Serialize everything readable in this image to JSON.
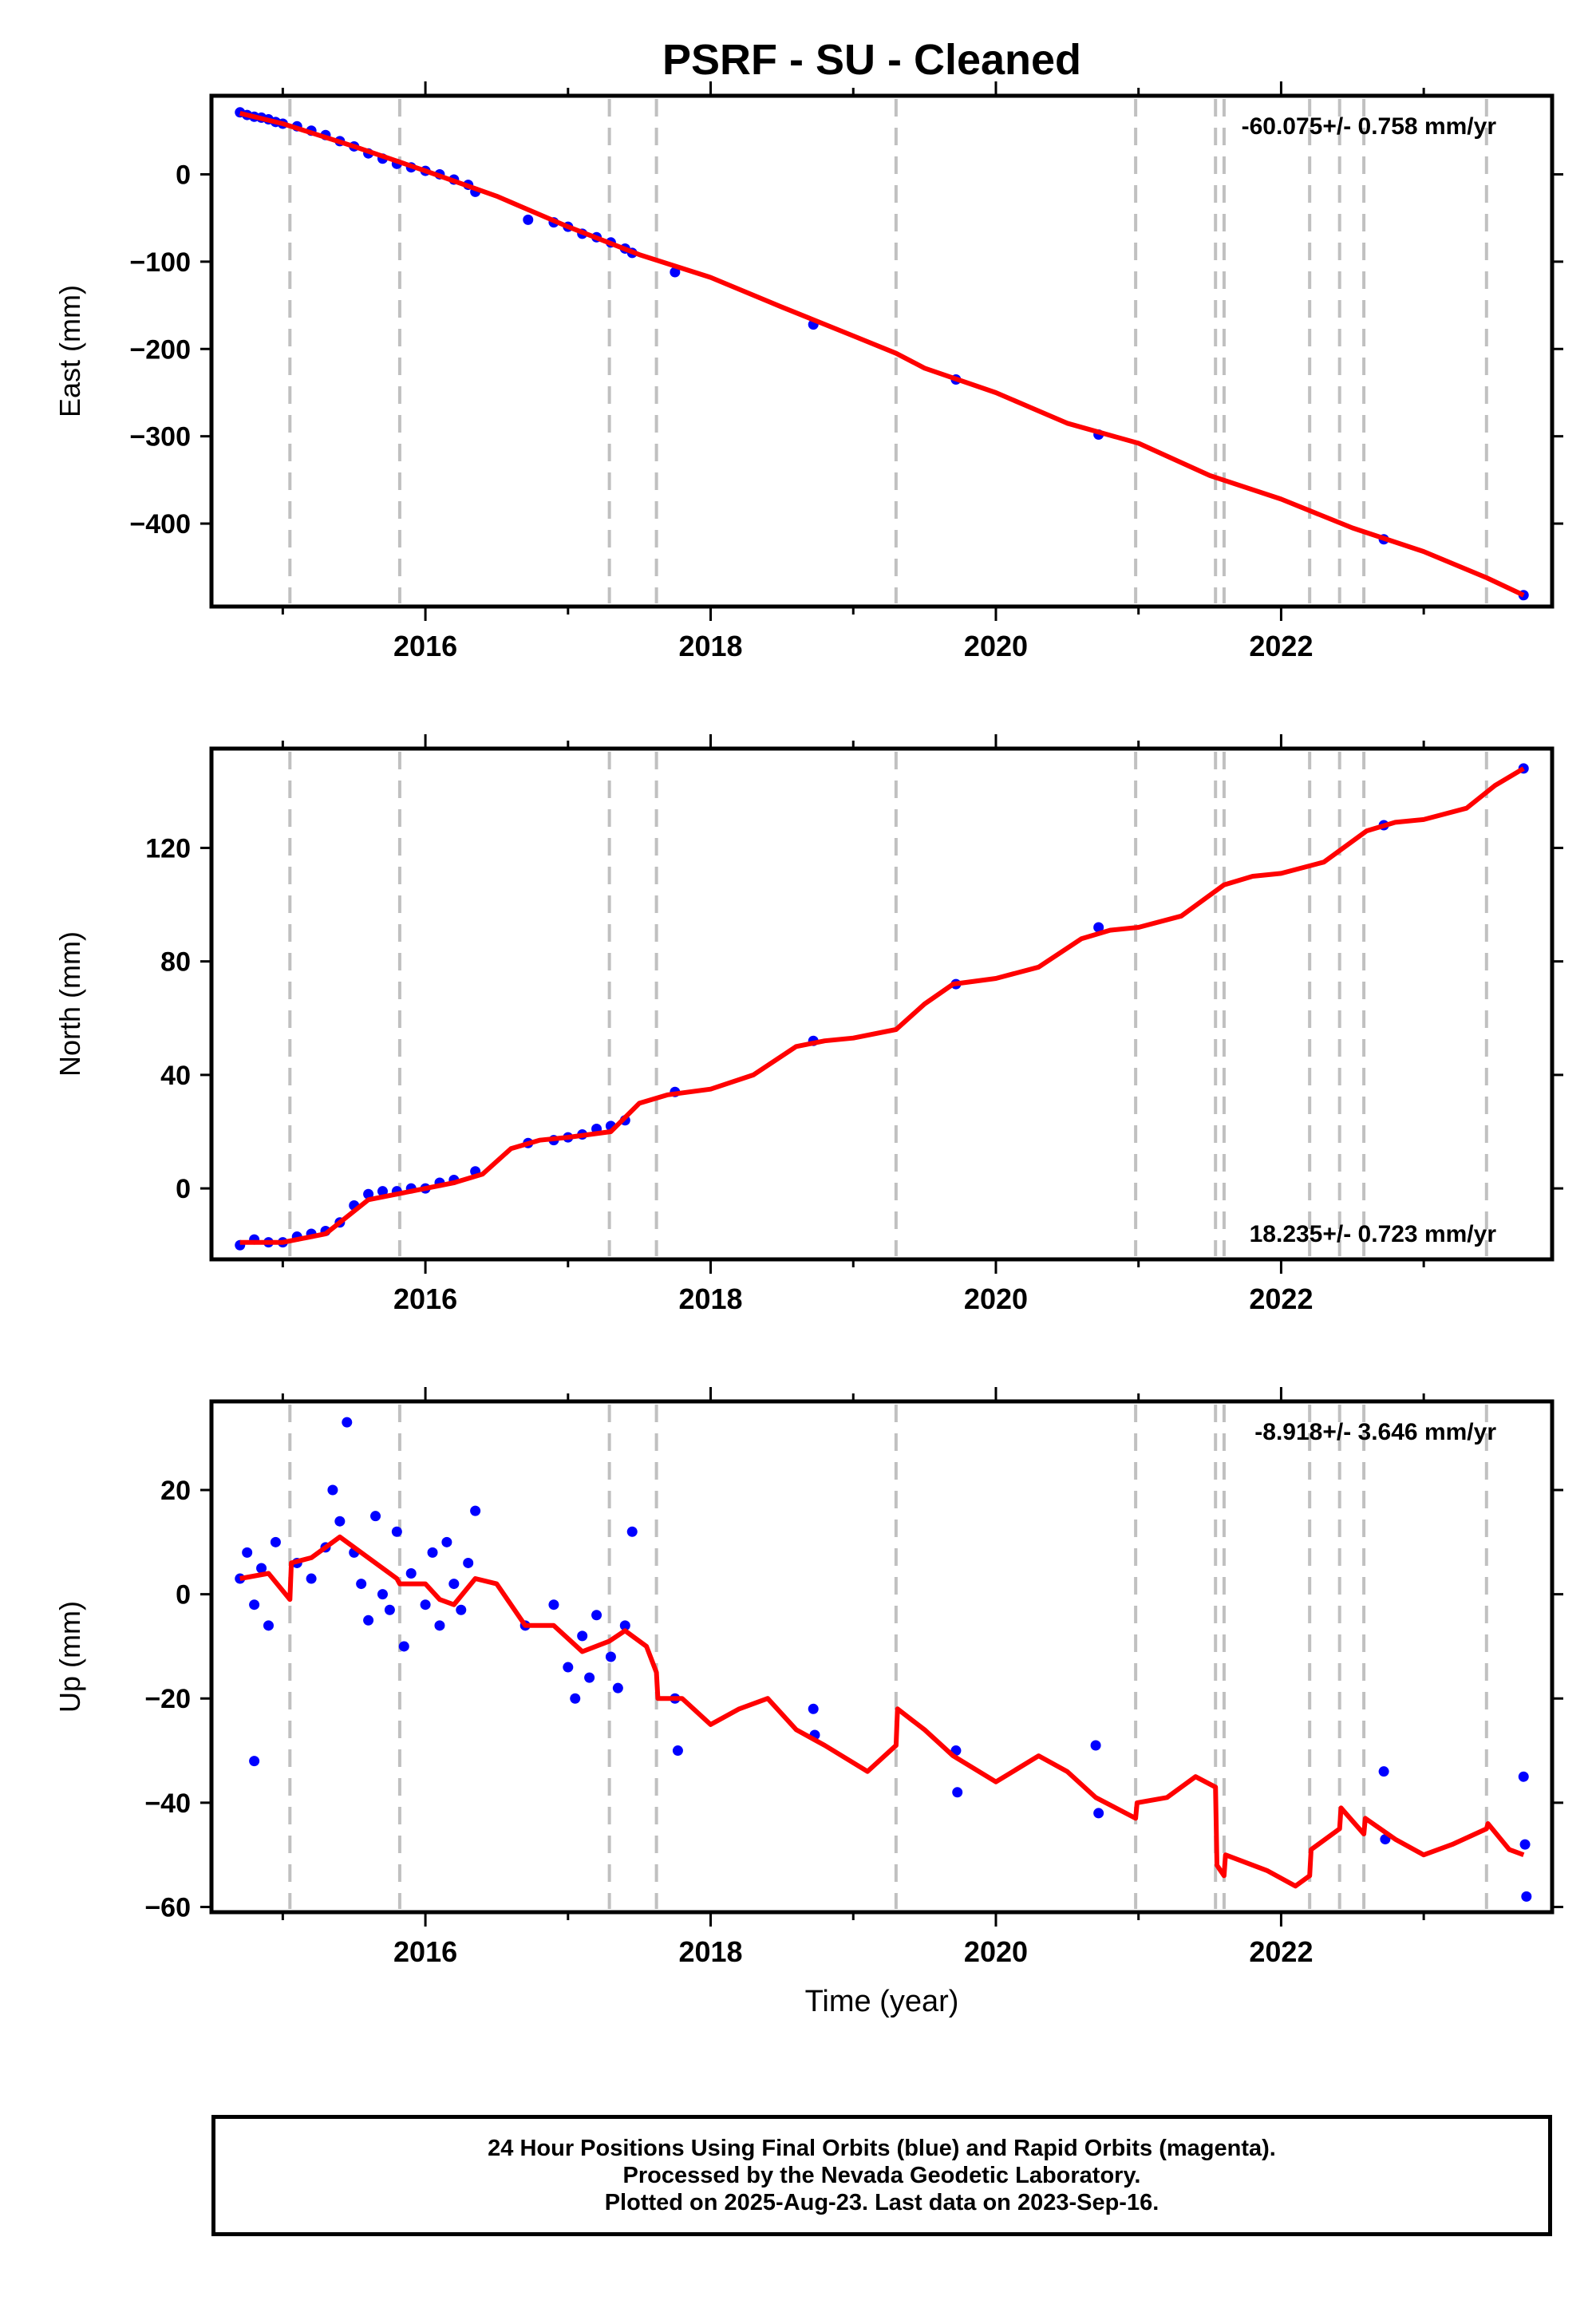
{
  "title": "PSRF  - SU - Cleaned",
  "colors": {
    "final_orbits": "#0000ff",
    "model_fit": "#ff0000",
    "steps": "#c0c0c0",
    "frame": "#000000"
  },
  "footnote": {
    "line1": "24 Hour Positions Using Final Orbits (blue) and Rapid Orbits (magenta).",
    "line2": "Processed by the Nevada Geodetic Laboratory.",
    "line3": "Plotted on 2025-Aug-23. Last data on 2023-Sep-16."
  },
  "chart_data": [
    {
      "type": "scatter",
      "ylabel": "East (mm)",
      "xlabel": "",
      "rate_label": "-60.075+/- 0.758 mm/yr",
      "rate_position": "top-right",
      "xlim": [
        2014.5,
        2023.9
      ],
      "ylim": [
        -495,
        90
      ],
      "yticks": [
        0,
        -100,
        -200,
        -300,
        -400
      ],
      "xticks": [
        2016,
        2018,
        2020,
        2022
      ],
      "step_epochs": [
        2015.05,
        2015.82,
        2017.29,
        2017.62,
        2019.3,
        2020.98,
        2021.54,
        2021.6,
        2022.2,
        2022.41,
        2022.58,
        2023.44
      ],
      "series": [
        {
          "role": "observations",
          "points": [
            [
              2014.7,
              71
            ],
            [
              2014.75,
              68
            ],
            [
              2014.8,
              66
            ],
            [
              2014.85,
              65
            ],
            [
              2014.9,
              63
            ],
            [
              2014.95,
              60
            ],
            [
              2015.0,
              58
            ],
            [
              2015.1,
              55
            ],
            [
              2015.2,
              50
            ],
            [
              2015.3,
              45
            ],
            [
              2015.4,
              38
            ],
            [
              2015.5,
              32
            ],
            [
              2015.6,
              24
            ],
            [
              2015.7,
              18
            ],
            [
              2015.8,
              12
            ],
            [
              2015.9,
              8
            ],
            [
              2016.0,
              4
            ],
            [
              2016.1,
              0
            ],
            [
              2016.2,
              -6
            ],
            [
              2016.3,
              -12
            ],
            [
              2016.35,
              -20
            ],
            [
              2016.72,
              -52
            ],
            [
              2016.9,
              -55
            ],
            [
              2017.0,
              -60
            ],
            [
              2017.1,
              -68
            ],
            [
              2017.2,
              -72
            ],
            [
              2017.3,
              -78
            ],
            [
              2017.4,
              -85
            ],
            [
              2017.45,
              -90
            ],
            [
              2017.75,
              -112
            ],
            [
              2018.72,
              -172
            ],
            [
              2019.72,
              -235
            ],
            [
              2020.72,
              -298
            ],
            [
              2022.72,
              -418
            ],
            [
              2023.7,
              -482
            ]
          ]
        },
        {
          "role": "model fit",
          "points": [
            [
              2014.7,
              70
            ],
            [
              2015.0,
              58
            ],
            [
              2015.5,
              32
            ],
            [
              2016.0,
              4
            ],
            [
              2016.5,
              -25
            ],
            [
              2017.0,
              -60
            ],
            [
              2017.5,
              -92
            ],
            [
              2018.0,
              -118
            ],
            [
              2018.5,
              -152
            ],
            [
              2019.0,
              -185
            ],
            [
              2019.3,
              -205
            ],
            [
              2019.5,
              -222
            ],
            [
              2020.0,
              -250
            ],
            [
              2020.5,
              -285
            ],
            [
              2021.0,
              -308
            ],
            [
              2021.5,
              -345
            ],
            [
              2022.0,
              -372
            ],
            [
              2022.5,
              -405
            ],
            [
              2023.0,
              -432
            ],
            [
              2023.44,
              -462
            ],
            [
              2023.7,
              -482
            ]
          ]
        }
      ]
    },
    {
      "type": "scatter",
      "ylabel": "North (mm)",
      "xlabel": "",
      "rate_label": "18.235+/- 0.723 mm/yr",
      "rate_position": "bottom-right",
      "xlim": [
        2014.5,
        2023.9
      ],
      "ylim": [
        -25,
        155
      ],
      "yticks": [
        0,
        40,
        80,
        120
      ],
      "xticks": [
        2016,
        2018,
        2020,
        2022
      ],
      "step_epochs": [
        2015.05,
        2015.82,
        2017.29,
        2017.62,
        2019.3,
        2020.98,
        2021.54,
        2021.6,
        2022.2,
        2022.41,
        2022.58,
        2023.44
      ],
      "series": [
        {
          "role": "observations",
          "points": [
            [
              2014.7,
              -20
            ],
            [
              2014.8,
              -18
            ],
            [
              2014.9,
              -19
            ],
            [
              2015.0,
              -19
            ],
            [
              2015.1,
              -17
            ],
            [
              2015.2,
              -16
            ],
            [
              2015.3,
              -15
            ],
            [
              2015.4,
              -12
            ],
            [
              2015.5,
              -6
            ],
            [
              2015.6,
              -2
            ],
            [
              2015.7,
              -1
            ],
            [
              2015.8,
              -1
            ],
            [
              2015.9,
              0
            ],
            [
              2016.0,
              0
            ],
            [
              2016.1,
              2
            ],
            [
              2016.2,
              3
            ],
            [
              2016.35,
              6
            ],
            [
              2016.72,
              16
            ],
            [
              2016.9,
              17
            ],
            [
              2017.0,
              18
            ],
            [
              2017.1,
              19
            ],
            [
              2017.2,
              21
            ],
            [
              2017.3,
              22
            ],
            [
              2017.4,
              24
            ],
            [
              2017.75,
              34
            ],
            [
              2018.72,
              52
            ],
            [
              2019.72,
              72
            ],
            [
              2020.72,
              92
            ],
            [
              2022.72,
              128
            ],
            [
              2023.7,
              148
            ]
          ]
        },
        {
          "role": "model fit",
          "points": [
            [
              2014.7,
              -19
            ],
            [
              2015.0,
              -19
            ],
            [
              2015.3,
              -16
            ],
            [
              2015.6,
              -4
            ],
            [
              2015.9,
              -1
            ],
            [
              2016.2,
              2
            ],
            [
              2016.4,
              5
            ],
            [
              2016.6,
              14
            ],
            [
              2016.8,
              17
            ],
            [
              2017.0,
              18
            ],
            [
              2017.3,
              20
            ],
            [
              2017.5,
              30
            ],
            [
              2017.7,
              33
            ],
            [
              2018.0,
              35
            ],
            [
              2018.3,
              40
            ],
            [
              2018.6,
              50
            ],
            [
              2018.8,
              52
            ],
            [
              2019.0,
              53
            ],
            [
              2019.3,
              56
            ],
            [
              2019.5,
              65
            ],
            [
              2019.7,
              72
            ],
            [
              2020.0,
              74
            ],
            [
              2020.3,
              78
            ],
            [
              2020.6,
              88
            ],
            [
              2020.8,
              91
            ],
            [
              2021.0,
              92
            ],
            [
              2021.3,
              96
            ],
            [
              2021.6,
              107
            ],
            [
              2021.8,
              110
            ],
            [
              2022.0,
              111
            ],
            [
              2022.3,
              115
            ],
            [
              2022.6,
              126
            ],
            [
              2022.8,
              129
            ],
            [
              2023.0,
              130
            ],
            [
              2023.3,
              134
            ],
            [
              2023.5,
              142
            ],
            [
              2023.7,
              148
            ]
          ]
        }
      ]
    },
    {
      "type": "scatter",
      "ylabel": "Up (mm)",
      "xlabel": "Time (year)",
      "rate_label": "-8.918+/- 3.646 mm/yr",
      "rate_position": "top-right",
      "xlim": [
        2014.5,
        2023.9
      ],
      "ylim": [
        -61,
        37
      ],
      "yticks": [
        20,
        0,
        -20,
        -40,
        -60
      ],
      "xticks": [
        2016,
        2018,
        2020,
        2022
      ],
      "step_epochs": [
        2015.05,
        2015.82,
        2017.29,
        2017.62,
        2019.3,
        2020.98,
        2021.54,
        2021.6,
        2022.2,
        2022.41,
        2022.58,
        2023.44
      ],
      "series": [
        {
          "role": "observations",
          "points": [
            [
              2014.7,
              3
            ],
            [
              2014.75,
              8
            ],
            [
              2014.8,
              -2
            ],
            [
              2014.85,
              5
            ],
            [
              2014.9,
              -6
            ],
            [
              2014.95,
              10
            ],
            [
              2014.8,
              -32
            ],
            [
              2015.1,
              6
            ],
            [
              2015.2,
              3
            ],
            [
              2015.3,
              9
            ],
            [
              2015.35,
              20
            ],
            [
              2015.4,
              14
            ],
            [
              2015.45,
              33
            ],
            [
              2015.5,
              8
            ],
            [
              2015.55,
              2
            ],
            [
              2015.6,
              -5
            ],
            [
              2015.65,
              15
            ],
            [
              2015.7,
              0
            ],
            [
              2015.75,
              -3
            ],
            [
              2015.8,
              12
            ],
            [
              2015.85,
              -10
            ],
            [
              2015.9,
              4
            ],
            [
              2016.0,
              -2
            ],
            [
              2016.05,
              8
            ],
            [
              2016.1,
              -6
            ],
            [
              2016.15,
              10
            ],
            [
              2016.2,
              2
            ],
            [
              2016.25,
              -3
            ],
            [
              2016.3,
              6
            ],
            [
              2016.35,
              16
            ],
            [
              2016.7,
              -6
            ],
            [
              2016.9,
              -2
            ],
            [
              2017.0,
              -14
            ],
            [
              2017.05,
              -20
            ],
            [
              2017.1,
              -8
            ],
            [
              2017.15,
              -16
            ],
            [
              2017.2,
              -4
            ],
            [
              2017.3,
              -12
            ],
            [
              2017.35,
              -18
            ],
            [
              2017.4,
              -6
            ],
            [
              2017.45,
              12
            ],
            [
              2017.75,
              -20
            ],
            [
              2017.77,
              -30
            ],
            [
              2018.72,
              -22
            ],
            [
              2018.73,
              -27
            ],
            [
              2019.72,
              -30
            ],
            [
              2019.73,
              -38
            ],
            [
              2020.7,
              -29
            ],
            [
              2020.72,
              -42
            ],
            [
              2022.72,
              -34
            ],
            [
              2022.73,
              -47
            ],
            [
              2023.7,
              -35
            ],
            [
              2023.71,
              -48
            ],
            [
              2023.72,
              -58
            ]
          ]
        },
        {
          "role": "model fit",
          "points": [
            [
              2014.7,
              3
            ],
            [
              2014.9,
              4
            ],
            [
              2015.05,
              -1
            ],
            [
              2015.06,
              6
            ],
            [
              2015.2,
              7
            ],
            [
              2015.4,
              11
            ],
            [
              2015.6,
              7
            ],
            [
              2015.8,
              3
            ],
            [
              2015.82,
              2
            ],
            [
              2016.0,
              2
            ],
            [
              2016.1,
              -1
            ],
            [
              2016.2,
              -2
            ],
            [
              2016.35,
              3
            ],
            [
              2016.5,
              2
            ],
            [
              2016.7,
              -6
            ],
            [
              2016.9,
              -6
            ],
            [
              2017.1,
              -11
            ],
            [
              2017.29,
              -9
            ],
            [
              2017.4,
              -7
            ],
            [
              2017.55,
              -10
            ],
            [
              2017.62,
              -15
            ],
            [
              2017.63,
              -20
            ],
            [
              2017.8,
              -20
            ],
            [
              2018.0,
              -25
            ],
            [
              2018.2,
              -22
            ],
            [
              2018.4,
              -20
            ],
            [
              2018.6,
              -26
            ],
            [
              2018.8,
              -29
            ],
            [
              2019.1,
              -34
            ],
            [
              2019.3,
              -29
            ],
            [
              2019.31,
              -22
            ],
            [
              2019.5,
              -26
            ],
            [
              2019.7,
              -31
            ],
            [
              2020.0,
              -36
            ],
            [
              2020.3,
              -31
            ],
            [
              2020.5,
              -34
            ],
            [
              2020.7,
              -39
            ],
            [
              2020.98,
              -43
            ],
            [
              2020.99,
              -40
            ],
            [
              2021.2,
              -39
            ],
            [
              2021.4,
              -35
            ],
            [
              2021.54,
              -37
            ],
            [
              2021.55,
              -52
            ],
            [
              2021.6,
              -54
            ],
            [
              2021.61,
              -50
            ],
            [
              2021.9,
              -53
            ],
            [
              2022.1,
              -56
            ],
            [
              2022.2,
              -54
            ],
            [
              2022.21,
              -49
            ],
            [
              2022.41,
              -45
            ],
            [
              2022.42,
              -41
            ],
            [
              2022.58,
              -46
            ],
            [
              2022.59,
              -43
            ],
            [
              2022.8,
              -47
            ],
            [
              2023.0,
              -50
            ],
            [
              2023.2,
              -48
            ],
            [
              2023.44,
              -45
            ],
            [
              2023.45,
              -44
            ],
            [
              2023.6,
              -49
            ],
            [
              2023.7,
              -50
            ]
          ]
        }
      ]
    }
  ]
}
